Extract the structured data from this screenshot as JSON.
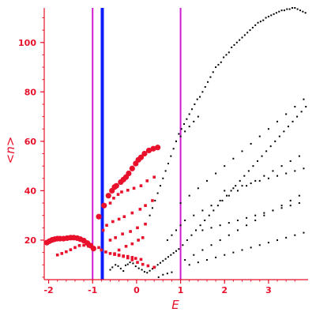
{
  "chart_data": {
    "type": "scatter",
    "title": "",
    "xlabel": "E",
    "ylabel": "<n>",
    "xlim": [
      -2.1,
      3.9
    ],
    "ylim": [
      4,
      114
    ],
    "xticks": [
      -2,
      -1,
      0,
      1,
      2,
      3
    ],
    "yticks": [
      20,
      40,
      60,
      80,
      100
    ],
    "grid": false,
    "colors": {
      "axis": "#e8102a",
      "red_points": "#e8102a",
      "black_points": "#000000",
      "blue_line": "#0a1cff",
      "magenta_line": "#d21ad2"
    },
    "vertical_lines": [
      {
        "x": -1.0,
        "color": "#d21ad2"
      },
      {
        "x": -0.78,
        "color": "#0a1cff"
      },
      {
        "x": 1.0,
        "color": "#d21ad2"
      }
    ],
    "series": [
      {
        "marker": "large-red",
        "x": [
          -2.04,
          -1.98,
          -1.92,
          -1.86,
          -1.8,
          -1.74,
          -1.66,
          -1.58,
          -1.5,
          -1.43,
          -1.35,
          -1.28,
          -1.2,
          -1.12,
          -1.05,
          -0.98,
          -0.86,
          -0.74,
          -0.64,
          -0.56,
          -0.5,
          -0.46,
          -0.36,
          -0.3,
          -0.24,
          -0.18,
          -0.1,
          -0.02,
          0.04,
          0.1,
          0.18,
          0.28,
          0.38,
          0.48
        ],
        "y": [
          19.0,
          19.6,
          20.1,
          20.4,
          20.6,
          20.6,
          20.6,
          20.8,
          21.0,
          21.0,
          20.8,
          20.4,
          19.8,
          18.8,
          17.8,
          16.6,
          29.5,
          34.0,
          38.0,
          40.0,
          41.5,
          42.0,
          43.5,
          44.5,
          45.5,
          47.0,
          49.0,
          51.0,
          52.5,
          53.5,
          55.0,
          56.3,
          57.0,
          57.5
        ]
      },
      {
        "marker": "small-red",
        "x": [
          -1.8,
          -1.7,
          -1.6,
          -1.5,
          -1.4,
          -1.3,
          -1.2,
          -1.1,
          -0.6,
          -0.52,
          -0.42,
          -0.34,
          -0.2,
          -0.06,
          0.1,
          0.24,
          0.4,
          -0.76,
          -0.68,
          -0.54,
          -0.4,
          -0.28,
          -0.1,
          0.08,
          0.2,
          0.36,
          -0.6,
          -0.48,
          -0.32,
          -0.14,
          0.02,
          0.2,
          -0.4,
          -0.24,
          -0.1,
          0.04,
          0.14,
          -0.86,
          -0.8,
          -0.7,
          -0.6,
          -0.5,
          -0.4,
          -0.3,
          -0.2,
          -0.1,
          -0.02,
          0.1,
          -0.5,
          -0.4,
          -0.3,
          -0.2,
          -0.1,
          0.02,
          0.14,
          0.26,
          0.4
        ],
        "y": [
          14.0,
          14.6,
          15.3,
          16.1,
          17.0,
          17.8,
          17.9,
          17.6,
          35.0,
          37.0,
          38.5,
          39.5,
          40.2,
          41.0,
          42.0,
          44.0,
          45.5,
          24.0,
          26.0,
          27.5,
          28.5,
          29.5,
          31.0,
          32.5,
          34.0,
          36.0,
          20.0,
          21.0,
          22.5,
          23.5,
          25.0,
          26.5,
          16.0,
          17.5,
          18.5,
          20.0,
          21.0,
          17.0,
          16.0,
          15.2,
          14.6,
          14.2,
          13.8,
          13.6,
          13.4,
          13.0,
          12.6,
          12.2,
          14.5,
          14.0,
          13.4,
          12.8,
          12.0,
          11.0,
          10.2,
          9.6,
          9.0
        ]
      },
      {
        "marker": "black-dot",
        "x": [
          -0.6,
          -0.55,
          -0.48,
          -0.42,
          -0.36,
          -0.3,
          -0.25,
          -0.2,
          -0.15,
          -0.08,
          -0.02,
          0.05,
          0.12,
          0.18,
          0.24,
          0.3,
          0.36,
          0.42,
          0.48,
          0.54,
          0.6,
          0.66,
          0.72,
          0.78,
          0.84,
          0.9,
          0.96,
          0.3,
          0.36,
          0.42,
          0.48,
          0.54,
          0.6,
          0.66,
          0.72,
          0.78,
          0.84,
          0.9,
          0.96,
          1.02,
          1.08,
          1.14,
          1.2,
          1.26,
          1.32,
          1.38,
          1.44,
          1.5,
          1.56,
          1.62,
          1.68,
          1.74,
          1.8,
          1.86,
          1.92,
          1.98,
          2.04,
          2.1,
          2.16,
          2.22,
          2.28,
          2.34,
          2.4,
          2.46,
          2.52,
          2.58,
          2.64,
          2.7,
          2.76,
          2.82,
          2.88,
          2.94,
          3.0,
          3.06,
          3.12,
          3.18,
          3.24,
          3.3,
          3.36,
          3.42,
          3.48,
          3.54,
          3.6,
          3.66,
          3.72,
          3.78,
          3.84,
          1.05,
          1.15,
          1.25,
          1.35,
          1.45,
          1.55,
          1.65,
          1.75,
          1.85,
          1.95,
          2.05,
          2.15,
          2.25,
          2.35,
          2.45,
          2.55,
          2.65,
          2.75,
          2.85,
          2.95,
          3.05,
          3.15,
          3.25,
          3.35,
          3.45,
          3.55,
          3.65,
          3.75,
          3.85,
          1.1,
          1.3,
          1.5,
          1.7,
          1.9,
          2.1,
          2.3,
          2.5,
          2.7,
          2.9,
          3.1,
          3.3,
          3.5,
          3.7,
          1.2,
          1.4,
          1.6,
          1.8,
          2.0,
          2.2,
          2.4,
          2.6,
          2.8,
          3.0,
          3.2,
          3.4,
          3.6,
          3.8,
          1.0,
          1.2,
          1.4,
          1.6,
          1.8,
          2.0,
          2.2,
          2.4,
          2.6,
          2.8,
          3.0,
          3.2,
          3.4,
          3.6,
          3.8,
          1.1,
          1.3,
          1.5,
          1.7,
          1.9,
          2.1,
          2.3,
          2.5,
          2.7,
          2.9,
          3.1,
          3.3,
          3.5,
          3.7,
          1.5,
          1.7,
          1.9,
          2.1,
          2.3,
          2.5,
          2.7,
          2.9,
          3.1,
          3.3,
          3.5,
          3.7,
          0.9,
          1.0,
          1.1,
          1.2,
          1.3,
          1.4,
          2.0,
          2.2,
          2.4,
          2.6,
          2.8,
          3.0,
          3.2,
          3.4,
          3.6,
          3.8,
          0.7,
          0.8,
          0.9,
          1.0,
          0.5,
          0.6,
          0.7,
          0.8
        ],
        "y": [
          8.0,
          9.0,
          10.0,
          9.5,
          8.5,
          7.5,
          9.8,
          10.2,
          11.0,
          10.6,
          9.4,
          8.6,
          8.0,
          7.2,
          6.8,
          7.6,
          8.4,
          9.2,
          10.0,
          10.8,
          11.6,
          12.4,
          13.2,
          14.0,
          14.8,
          15.6,
          16.4,
          30.0,
          33.0,
          36.0,
          39.0,
          42.0,
          45.0,
          48.0,
          51.0,
          54.0,
          57.0,
          60.0,
          63.0,
          65.0,
          67.0,
          69.0,
          71.0,
          73.0,
          75.0,
          77.0,
          78.0,
          80.0,
          82.0,
          84.0,
          86.0,
          88.0,
          90.0,
          91.0,
          92.0,
          94.0,
          95.0,
          96.0,
          98.0,
          99.0,
          100.0,
          101.0,
          102.0,
          103.0,
          104.0,
          105.0,
          106.0,
          107.0,
          108.0,
          108.5,
          109.0,
          110.0,
          110.5,
          111.0,
          111.5,
          112.0,
          112.5,
          113.0,
          113.0,
          113.5,
          113.5,
          114.0,
          114.0,
          113.5,
          113.0,
          112.5,
          112.0,
          18.0,
          20.0,
          22.0,
          24.0,
          26.0,
          28.0,
          30.0,
          32.0,
          34.0,
          36.0,
          38.0,
          40.0,
          42.0,
          44.0,
          46.0,
          48.0,
          50.0,
          52.0,
          54.0,
          56.0,
          58.0,
          60.0,
          62.0,
          64.0,
          66.0,
          68.0,
          70.0,
          72.0,
          74.0,
          12.0,
          14.0,
          16.0,
          18.0,
          20.0,
          22.0,
          24.0,
          26.0,
          28.0,
          30.0,
          32.0,
          34.0,
          36.0,
          38.0,
          10.0,
          11.0,
          12.0,
          13.0,
          14.0,
          15.0,
          16.0,
          17.0,
          18.0,
          19.0,
          20.0,
          21.0,
          22.0,
          23.0,
          35.0,
          38.0,
          41.0,
          44.0,
          47.0,
          50.0,
          53.0,
          56.0,
          59.0,
          62.0,
          65.0,
          68.0,
          71.0,
          74.0,
          77.0,
          28.0,
          30.0,
          32.0,
          34.0,
          36.0,
          38.0,
          40.0,
          42.0,
          44.0,
          46.0,
          48.0,
          50.0,
          52.0,
          54.0,
          24.0,
          25.0,
          26.0,
          27.0,
          28.0,
          29.0,
          30.0,
          31.0,
          32.0,
          33.0,
          34.0,
          35.0,
          60.0,
          62.0,
          64.0,
          66.0,
          68.0,
          70.0,
          40.0,
          41.0,
          42.0,
          43.0,
          44.0,
          45.0,
          46.0,
          47.0,
          48.0,
          49.0,
          20.0,
          22.0,
          24.0,
          26.0,
          5.0,
          6.0,
          6.5,
          7.0
        ]
      }
    ]
  }
}
